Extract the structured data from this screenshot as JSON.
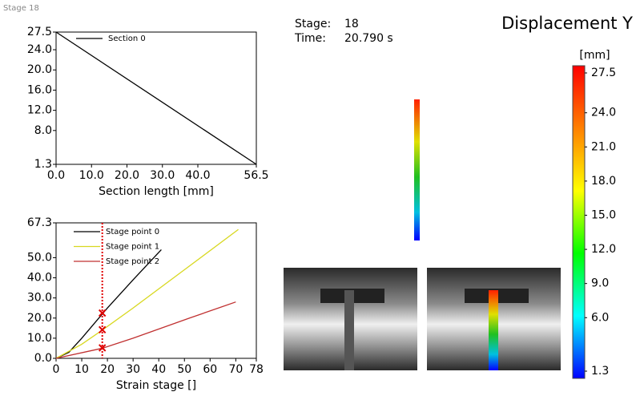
{
  "header": {
    "corner_label": "Stage 18",
    "stage_label": "Stage:",
    "stage_value": "18",
    "time_label": "Time:",
    "time_value": "20.790 s"
  },
  "chart_data": [
    {
      "type": "line",
      "xlabel": "Section length [mm]",
      "series": [
        {
          "name": "Section 0",
          "color": "#000000",
          "x": [
            0,
            56.5
          ],
          "values": [
            27.5,
            1.3
          ]
        }
      ],
      "xlim": [
        0,
        56.5
      ],
      "ylim": [
        1.3,
        27.5
      ],
      "xticks": [
        {
          "value": 0,
          "label": "0.0"
        },
        {
          "value": 10,
          "label": "10.0"
        },
        {
          "value": 20,
          "label": "20.0"
        },
        {
          "value": 30,
          "label": "30.0"
        },
        {
          "value": 40,
          "label": "40.0"
        },
        56.5
      ],
      "yticks": [
        1.3,
        {
          "value": 8,
          "label": "8.0"
        },
        {
          "value": 12,
          "label": "12.0"
        },
        {
          "value": 16,
          "label": "16.0"
        },
        {
          "value": 20,
          "label": "20.0"
        },
        {
          "value": 24,
          "label": "24.0"
        },
        27.5
      ],
      "grid": false
    },
    {
      "type": "line",
      "xlabel": "Strain stage []",
      "series": [
        {
          "name": "Stage point 0",
          "color": "#000000",
          "x": [
            0,
            5,
            10,
            20,
            30,
            41
          ],
          "values": [
            0,
            3,
            10,
            25,
            39,
            54
          ]
        },
        {
          "name": "Stage point 1",
          "color": "#d8d820",
          "x": [
            0,
            10,
            18,
            30,
            50,
            71
          ],
          "values": [
            0,
            7,
            14,
            25,
            44,
            64
          ]
        },
        {
          "name": "Stage point 2",
          "color": "#c03030",
          "x": [
            0,
            18,
            30,
            52,
            70
          ],
          "values": [
            0,
            5,
            10,
            20,
            28
          ]
        }
      ],
      "cursor": {
        "x": 18,
        "color": "#e00000",
        "values": [
          22.5,
          14.2,
          5.2
        ]
      },
      "xlim": [
        0,
        78
      ],
      "ylim": [
        0,
        67.3
      ],
      "xticks": [
        0,
        10,
        20,
        30,
        40,
        50,
        60,
        70,
        78
      ],
      "yticks": [
        {
          "value": 0,
          "label": "0.0"
        },
        {
          "value": 10,
          "label": "10.0"
        },
        {
          "value": 20,
          "label": "20.0"
        },
        {
          "value": 30,
          "label": "30.0"
        },
        {
          "value": 40,
          "label": "40.0"
        },
        {
          "value": 50,
          "label": "50.0"
        },
        67.3
      ],
      "grid": false
    },
    {
      "type": "colorbar",
      "title": "Displacement Y",
      "unit": "[mm]",
      "ylim": [
        1.3,
        27.5
      ],
      "colors": [
        "#0000ff",
        "#00ffff",
        "#00ff00",
        "#ffff00",
        "#ff8000",
        "#ff0000"
      ],
      "yticks": [
        1.3,
        {
          "value": 6,
          "label": "6.0"
        },
        {
          "value": 9,
          "label": "9.0"
        },
        {
          "value": 12,
          "label": "12.0"
        },
        {
          "value": 15,
          "label": "15.0"
        },
        {
          "value": 18,
          "label": "18.0"
        },
        {
          "value": 21,
          "label": "21.0"
        },
        {
          "value": 24,
          "label": "24.0"
        },
        27.5
      ]
    }
  ]
}
